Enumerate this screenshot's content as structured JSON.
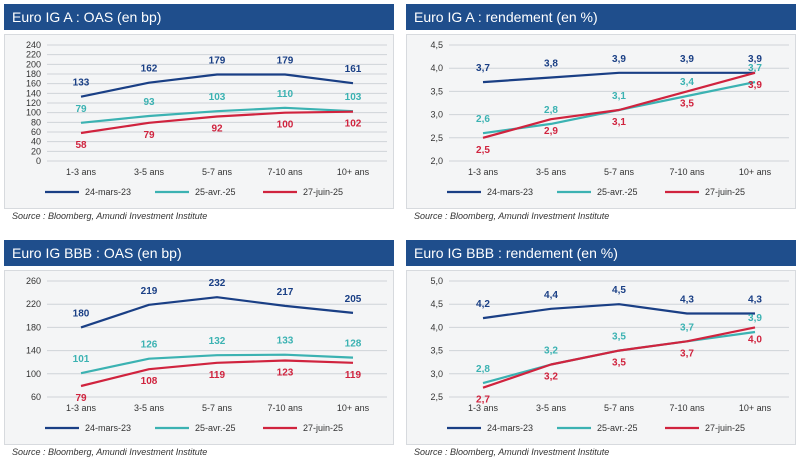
{
  "colors": {
    "header_bg": "#1f4e8c",
    "series": [
      "#1a3f85",
      "#3bb2b2",
      "#d0233e"
    ],
    "plot_bg": "#f4f5f6",
    "grid": "#cfd3d8"
  },
  "chart_data": [
    {
      "type": "line",
      "title": "Euro IG A : OAS (en bp)",
      "source": "Source : Bloomberg, Amundi Investment Institute",
      "categories": [
        "1-3 ans",
        "3-5 ans",
        "5-7 ans",
        "7-10 ans",
        "10+ ans"
      ],
      "yticks": [
        "0",
        "20",
        "40",
        "60",
        "80",
        "100",
        "120",
        "140",
        "160",
        "180",
        "200",
        "220",
        "240"
      ],
      "ylim": [
        0,
        240
      ],
      "series": [
        {
          "name": "24-mars-23",
          "values": [
            133,
            162,
            179,
            179,
            161
          ],
          "labels": [
            "133",
            "162",
            "179",
            "179",
            "161"
          ]
        },
        {
          "name": "25-avr.-25",
          "values": [
            79,
            93,
            103,
            110,
            103
          ],
          "labels": [
            "79",
            "93",
            "103",
            "110",
            "103"
          ]
        },
        {
          "name": "27-juin-25",
          "values": [
            58,
            79,
            92,
            100,
            102
          ],
          "labels": [
            "58",
            "79",
            "92",
            "100",
            "102"
          ]
        }
      ]
    },
    {
      "type": "line",
      "title": "Euro IG A : rendement (en %)",
      "source": "Source : Bloomberg, Amundi Investment Institute",
      "categories": [
        "1-3 ans",
        "3-5 ans",
        "5-7 ans",
        "7-10 ans",
        "10+ ans"
      ],
      "yticks": [
        "2,0",
        "2,5",
        "3,0",
        "3,5",
        "4,0",
        "4,5"
      ],
      "ylim": [
        2.0,
        4.5
      ],
      "series": [
        {
          "name": "24-mars-23",
          "values": [
            3.7,
            3.8,
            3.9,
            3.9,
            3.9
          ],
          "labels": [
            "3,7",
            "3,8",
            "3,9",
            "3,9",
            "3,9"
          ]
        },
        {
          "name": "25-avr.-25",
          "values": [
            2.6,
            2.8,
            3.1,
            3.4,
            3.7
          ],
          "labels": [
            "2,6",
            "2,8",
            "3,1",
            "3,4",
            "3,7"
          ]
        },
        {
          "name": "27-juin-25",
          "values": [
            2.5,
            2.9,
            3.1,
            3.5,
            3.9
          ],
          "labels": [
            "2,5",
            "2,9",
            "3,1",
            "3,5",
            "3,9"
          ]
        }
      ]
    },
    {
      "type": "line",
      "title": "Euro IG BBB : OAS (en bp)",
      "source": "Source : Bloomberg, Amundi Investment Institute",
      "categories": [
        "1-3 ans",
        "3-5 ans",
        "5-7 ans",
        "7-10 ans",
        "10+ ans"
      ],
      "yticks": [
        "60",
        "100",
        "140",
        "180",
        "220",
        "260"
      ],
      "ylim": [
        60,
        260
      ],
      "series": [
        {
          "name": "24-mars-23",
          "values": [
            180,
            219,
            232,
            217,
            205
          ],
          "labels": [
            "180",
            "219",
            "232",
            "217",
            "205"
          ]
        },
        {
          "name": "25-avr.-25",
          "values": [
            101,
            126,
            132,
            133,
            128
          ],
          "labels": [
            "101",
            "126",
            "132",
            "133",
            "128"
          ]
        },
        {
          "name": "27-juin-25",
          "values": [
            79,
            108,
            119,
            123,
            119
          ],
          "labels": [
            "79",
            "108",
            "119",
            "123",
            "119"
          ]
        }
      ]
    },
    {
      "type": "line",
      "title": "Euro IG BBB : rendement (en %)",
      "source": "Source : Bloomberg, Amundi Investment Institute",
      "categories": [
        "1-3 ans",
        "3-5 ans",
        "5-7 ans",
        "7-10 ans",
        "10+ ans"
      ],
      "yticks": [
        "2,5",
        "3,0",
        "3,5",
        "4,0",
        "4,5",
        "5,0"
      ],
      "ylim": [
        2.5,
        5.0
      ],
      "series": [
        {
          "name": "24-mars-23",
          "values": [
            4.2,
            4.4,
            4.5,
            4.3,
            4.3
          ],
          "labels": [
            "4,2",
            "4,4",
            "4,5",
            "4,3",
            "4,3"
          ]
        },
        {
          "name": "25-avr.-25",
          "values": [
            2.8,
            3.2,
            3.5,
            3.7,
            3.9
          ],
          "labels": [
            "2,8",
            "3,2",
            "3,5",
            "3,7",
            "3,9"
          ]
        },
        {
          "name": "27-juin-25",
          "values": [
            2.7,
            3.2,
            3.5,
            3.7,
            4.0
          ],
          "labels": [
            "2,7",
            "3,2",
            "3,5",
            "3,7",
            "4,0"
          ]
        }
      ]
    }
  ]
}
